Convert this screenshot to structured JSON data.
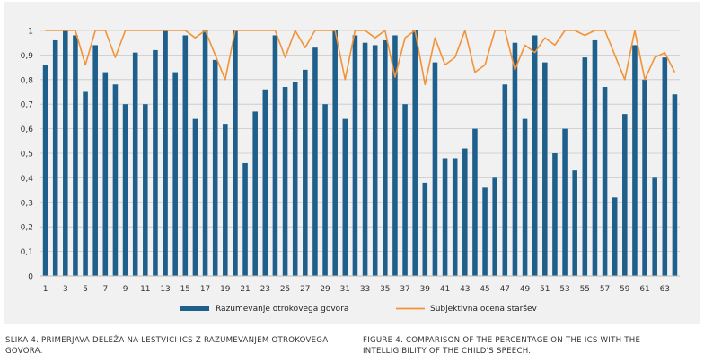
{
  "chart_data": {
    "type": "bar",
    "categories": [
      1,
      2,
      3,
      4,
      5,
      6,
      7,
      8,
      9,
      10,
      11,
      12,
      13,
      14,
      15,
      16,
      17,
      18,
      19,
      20,
      21,
      22,
      23,
      24,
      25,
      26,
      27,
      28,
      29,
      30,
      31,
      32,
      33,
      34,
      35,
      36,
      37,
      38,
      39,
      40,
      41,
      42,
      43,
      44,
      45,
      46,
      47,
      48,
      49,
      50,
      51,
      52,
      53,
      54,
      55,
      56,
      57,
      58,
      59,
      60,
      61,
      62,
      63,
      64
    ],
    "x_tick_labels": [
      "1",
      "3",
      "5",
      "7",
      "9",
      "11",
      "13",
      "15",
      "17",
      "19",
      "21",
      "23",
      "25",
      "27",
      "29",
      "31",
      "33",
      "35",
      "37",
      "39",
      "41",
      "43",
      "45",
      "47",
      "49",
      "51",
      "53",
      "55",
      "57",
      "59",
      "61",
      "63"
    ],
    "y_tick_labels": [
      "0",
      "0,1",
      "0,2",
      "0,3",
      "0,4",
      "0,5",
      "0,6",
      "0,7",
      "0,8",
      "0,9",
      "1"
    ],
    "ylim": [
      0,
      1
    ],
    "grid": true,
    "legend_position": "bottom",
    "series": [
      {
        "name": "Razumevanje otrokovega govora",
        "type": "bar",
        "color": "#1f5f8b",
        "values": [
          0.86,
          0.96,
          1.0,
          0.98,
          0.75,
          0.94,
          0.83,
          0.78,
          0.7,
          0.91,
          0.7,
          0.92,
          1.0,
          0.83,
          0.98,
          0.64,
          1.0,
          0.88,
          0.62,
          1.0,
          0.46,
          0.67,
          0.76,
          0.98,
          0.77,
          0.79,
          0.84,
          0.93,
          0.7,
          1.0,
          0.64,
          0.98,
          0.95,
          0.94,
          0.96,
          0.98,
          0.7,
          1.0,
          0.38,
          0.87,
          0.48,
          0.48,
          0.52,
          0.6,
          0.36,
          0.4,
          0.78,
          0.95,
          0.64,
          0.98,
          0.87,
          0.5,
          0.6,
          0.43,
          0.89,
          0.96,
          0.77,
          0.32,
          0.66,
          0.94,
          0.8,
          0.4,
          0.89,
          0.74
        ]
      },
      {
        "name": "Subjektivna ocena staršev",
        "type": "line",
        "color": "#f39237",
        "values": [
          1.0,
          1.0,
          1.0,
          1.0,
          0.86,
          1.0,
          1.0,
          0.89,
          1.0,
          1.0,
          1.0,
          1.0,
          1.0,
          1.0,
          1.0,
          0.97,
          1.0,
          0.9,
          0.8,
          1.0,
          1.0,
          1.0,
          1.0,
          1.0,
          0.89,
          1.0,
          0.93,
          1.0,
          1.0,
          1.0,
          0.8,
          1.0,
          1.0,
          0.97,
          1.0,
          0.81,
          0.97,
          1.0,
          0.78,
          0.97,
          0.86,
          0.89,
          1.0,
          0.83,
          0.86,
          1.0,
          1.0,
          0.84,
          0.94,
          0.91,
          0.97,
          0.94,
          1.0,
          1.0,
          0.98,
          1.0,
          1.0,
          0.9,
          0.8,
          1.0,
          0.8,
          0.89,
          0.91,
          0.83
        ]
      }
    ]
  },
  "captions": {
    "left": "SLIKA 4. PRIMERJAVA DELEŽA NA LESTVICI ICS Z RAZUMEVANJEM OTROKOVEGA GOVORA.",
    "right": "FIGURE 4. COMPARISON OF THE PERCENTAGE ON THE ICS WITH THE INTELLIGIBILITY OF THE CHILD'S SPEECH."
  }
}
